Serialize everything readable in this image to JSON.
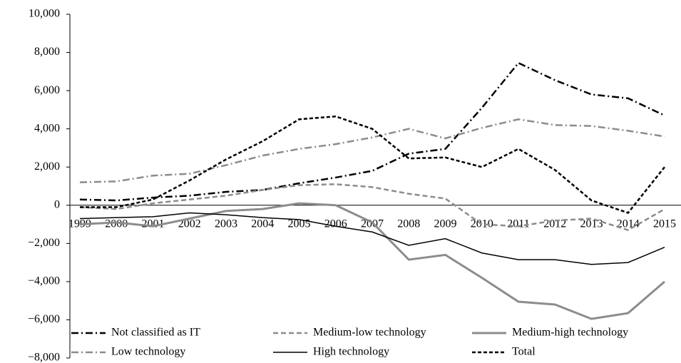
{
  "chart_data": {
    "type": "line",
    "categories": [
      "1999",
      "2000",
      "2001",
      "2002",
      "2003",
      "2004",
      "2005",
      "2006",
      "2007",
      "2008",
      "2009",
      "2010",
      "2011",
      "2012",
      "2013",
      "2014",
      "2015"
    ],
    "series": [
      {
        "name": "Not classified as IT",
        "color": "#000000",
        "dash": "10 4 2 4",
        "width": 2.5,
        "values": [
          300,
          250,
          400,
          500,
          700,
          800,
          1150,
          1450,
          1800,
          2700,
          2950,
          5100,
          7450,
          6550,
          5800,
          5600,
          4700
        ]
      },
      {
        "name": "Medium-low technology",
        "color": "#8c8c8c",
        "dash": "7 4",
        "width": 2.5,
        "values": [
          -100,
          -200,
          100,
          300,
          500,
          800,
          1050,
          1100,
          950,
          600,
          350,
          -1000,
          -1100,
          -800,
          -700,
          -1300,
          -200
        ]
      },
      {
        "name": "Medium-high technology",
        "color": "#8c8c8c",
        "dash": "",
        "width": 3,
        "values": [
          -1000,
          -900,
          -1100,
          -700,
          -300,
          -200,
          100,
          0,
          -900,
          -2850,
          -2600,
          -3800,
          -5050,
          -5200,
          -5950,
          -5650,
          -4000
        ]
      },
      {
        "name": "Low technology",
        "color": "#8c8c8c",
        "dash": "10 4 2 4",
        "width": 2.5,
        "values": [
          1200,
          1250,
          1550,
          1650,
          2100,
          2600,
          2950,
          3200,
          3550,
          4000,
          3500,
          4050,
          4500,
          4200,
          4150,
          3900,
          3600
        ]
      },
      {
        "name": "High technology",
        "color": "#000000",
        "dash": "",
        "width": 1.5,
        "values": [
          -700,
          -650,
          -600,
          -400,
          -500,
          -650,
          -750,
          -1100,
          -1400,
          -2100,
          -1750,
          -2500,
          -2850,
          -2850,
          -3100,
          -3000,
          -2200
        ]
      },
      {
        "name": "Total",
        "color": "#000000",
        "dash": "5 3",
        "width": 2.5,
        "values": [
          -100,
          -100,
          300,
          1300,
          2400,
          3350,
          4500,
          4650,
          4000,
          2450,
          2500,
          2000,
          2950,
          1850,
          250,
          -400,
          2000
        ]
      }
    ],
    "ylim": [
      -8000,
      10000
    ],
    "yticks": [
      {
        "value": -8000,
        "label": "−8,000"
      },
      {
        "value": -6000,
        "label": "−6,000"
      },
      {
        "value": -4000,
        "label": "−4,000"
      },
      {
        "value": -2000,
        "label": "−2,000"
      },
      0,
      {
        "value": 2000,
        "label": "2,000"
      },
      {
        "value": 4000,
        "label": "4,000"
      },
      {
        "value": 6000,
        "label": "6,000"
      },
      {
        "value": 8000,
        "label": "8,000"
      },
      {
        "value": 10000,
        "label": "10,000"
      }
    ],
    "grid": false
  }
}
